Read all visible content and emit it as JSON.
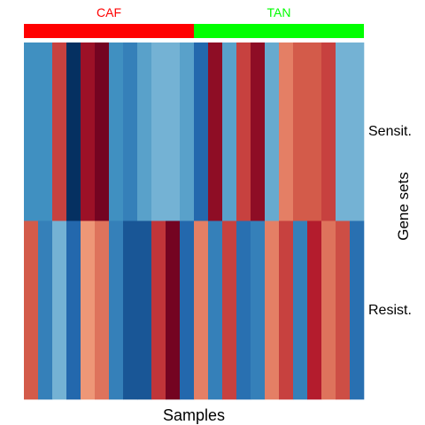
{
  "chart_data": {
    "type": "heatmap",
    "xlabel": "Samples",
    "ylabel": "Gene sets",
    "rows": [
      "Sensit.",
      "Resist."
    ],
    "groups": [
      {
        "name": "CAF",
        "start": 0,
        "count": 12,
        "color": "#ff0000"
      },
      {
        "name": "TAN",
        "start": 12,
        "count": 12,
        "color": "#00ff00"
      }
    ],
    "value_range": [
      -2,
      2
    ],
    "palette": [
      "#053061",
      "#2166ac",
      "#4393c3",
      "#92c5de",
      "#f4a582",
      "#d6604d",
      "#b2182b",
      "#67001f"
    ],
    "values": [
      [
        -0.9,
        -0.9,
        1.1,
        -2.0,
        1.6,
        1.9,
        -0.9,
        -1.1,
        -0.7,
        -0.5,
        -0.5,
        -0.7,
        -1.4,
        1.7,
        -0.7,
        1.1,
        1.7,
        -0.6,
        0.6,
        0.9,
        0.9,
        1.1,
        -0.5,
        -0.5
      ],
      [
        0.9,
        -1.1,
        -0.5,
        -1.4,
        0.4,
        0.7,
        -1.1,
        -1.6,
        -1.6,
        1.2,
        1.9,
        -1.4,
        0.6,
        -1.1,
        1.1,
        -1.3,
        -1.1,
        0.6,
        1.1,
        -1.1,
        1.4,
        0.7,
        1.0,
        -1.3
      ]
    ]
  }
}
